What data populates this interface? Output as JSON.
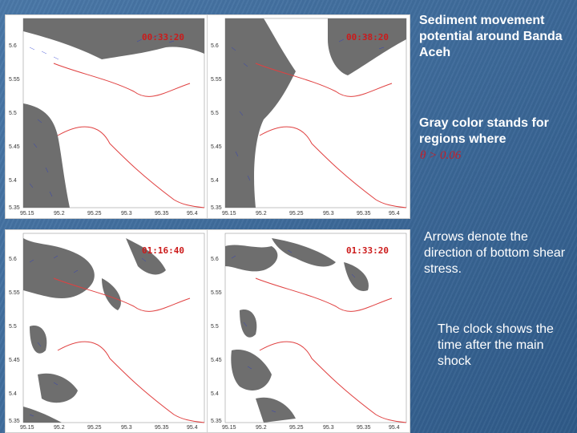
{
  "panels": [
    {
      "clock": "00:33:20"
    },
    {
      "clock": "00:38:20"
    },
    {
      "clock": "01:16:40"
    },
    {
      "clock": "01:33:20"
    }
  ],
  "y_ticks": [
    "5.6",
    "5.55",
    "5.5",
    "5.45",
    "5.4",
    "5.35"
  ],
  "x_ticks": [
    "95.15",
    "95.2",
    "95.25",
    "95.3",
    "95.35",
    "95.4"
  ],
  "text": {
    "title": "Sediment movement potential around Banda Aceh",
    "gray_note": "Gray color stands for regions where",
    "theta_expr": "θ > 0.06",
    "arrows_note": "Arrows denote the direction of bottom shear stress.",
    "clock_note": "The clock shows the time after the main shock"
  },
  "colors": {
    "clock": "#cc1a1a",
    "coast": "#e04040",
    "arrow": "#2233cc",
    "gray": "#6e6e6e"
  }
}
